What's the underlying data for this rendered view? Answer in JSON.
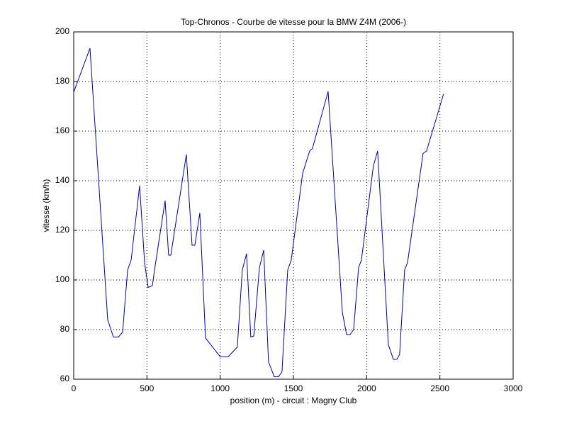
{
  "chart_data": {
    "type": "line",
    "title": "Top-Chronos - Courbe de vitesse pour la BMW Z4M (2006-)",
    "xlabel": "position (m) - circuit : Magny Club",
    "ylabel": "vitesse (km/h)",
    "x": [
      0,
      111,
      232,
      271,
      305,
      334,
      368,
      392,
      450,
      484,
      508,
      537,
      556,
      624,
      648,
      663,
      769,
      808,
      827,
      861,
      900,
      1001,
      1054,
      1117,
      1151,
      1180,
      1209,
      1229,
      1268,
      1297,
      1330,
      1369,
      1398,
      1422,
      1461,
      1485,
      1563,
      1611,
      1630,
      1737,
      1834,
      1863,
      1887,
      1911,
      1945,
      1964,
      2046,
      2075,
      2148,
      2182,
      2206,
      2225,
      2259,
      2279,
      2385,
      2409,
      2525
    ],
    "series": [
      {
        "name": "vitesse",
        "color": "#0000aa",
        "values": [
          175.7,
          193.4,
          84,
          77,
          77,
          79,
          104,
          108,
          138,
          107,
          97,
          97.7,
          105.7,
          132,
          110,
          110,
          150.6,
          114,
          114,
          127,
          76.6,
          69,
          69,
          73,
          104,
          110.6,
          77,
          77.4,
          105,
          112,
          67,
          61,
          61,
          63,
          104,
          108,
          143,
          152,
          153,
          176,
          87,
          78,
          78,
          80,
          105,
          108,
          146,
          152,
          74,
          68,
          68,
          70,
          104,
          107,
          151,
          152,
          175
        ]
      }
    ],
    "xlim": [
      0,
      3000
    ],
    "xticks": [
      0,
      500,
      1000,
      1500,
      2000,
      2500,
      3000
    ],
    "ylim": [
      60,
      200
    ],
    "yticks": [
      60,
      80,
      100,
      120,
      140,
      160,
      180,
      200
    ],
    "grid": true
  }
}
